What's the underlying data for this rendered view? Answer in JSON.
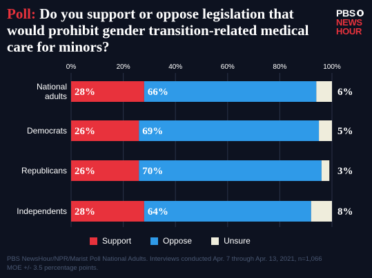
{
  "title_keyword": "Poll:",
  "title_text": "Do you support or oppose legislation that would prohibit gender transition-related medical care for minors?",
  "logo": {
    "line1": "PBS",
    "line2": "NEWS",
    "line3": "HOUR"
  },
  "source": "PBS NewsHour/NPR/Marist Poll National Adults. Interviews conducted Apr. 7 through Apr. 13, 2021, n=1,066 MOE +/- 3.5 percentage points.",
  "chart_data": {
    "type": "bar",
    "orientation": "horizontal",
    "stacked": true,
    "categories": [
      "National adults",
      "Democrats",
      "Republicans",
      "Independents"
    ],
    "category_lines": [
      [
        "National",
        "adults"
      ],
      [
        "Democrats"
      ],
      [
        "Republicans"
      ],
      [
        "Independents"
      ]
    ],
    "series": [
      {
        "name": "Support",
        "color": "#e8323c",
        "values": [
          28,
          26,
          26,
          28
        ],
        "labels": [
          "28%",
          "26%",
          "26%",
          "28%"
        ]
      },
      {
        "name": "Oppose",
        "color": "#2f9ae8",
        "values": [
          66,
          69,
          70,
          64
        ],
        "labels": [
          "66%",
          "69%",
          "70%",
          "64%"
        ]
      },
      {
        "name": "Unsure",
        "color": "#efeddc",
        "values": [
          6,
          5,
          3,
          8
        ],
        "labels": [
          "6%",
          "5%",
          "3%",
          "8%"
        ]
      }
    ],
    "xlim": [
      0,
      100
    ],
    "xticks": [
      "0%",
      "20%",
      "40%",
      "60%",
      "80%",
      "100%"
    ],
    "grid": true,
    "legend_position": "bottom"
  }
}
